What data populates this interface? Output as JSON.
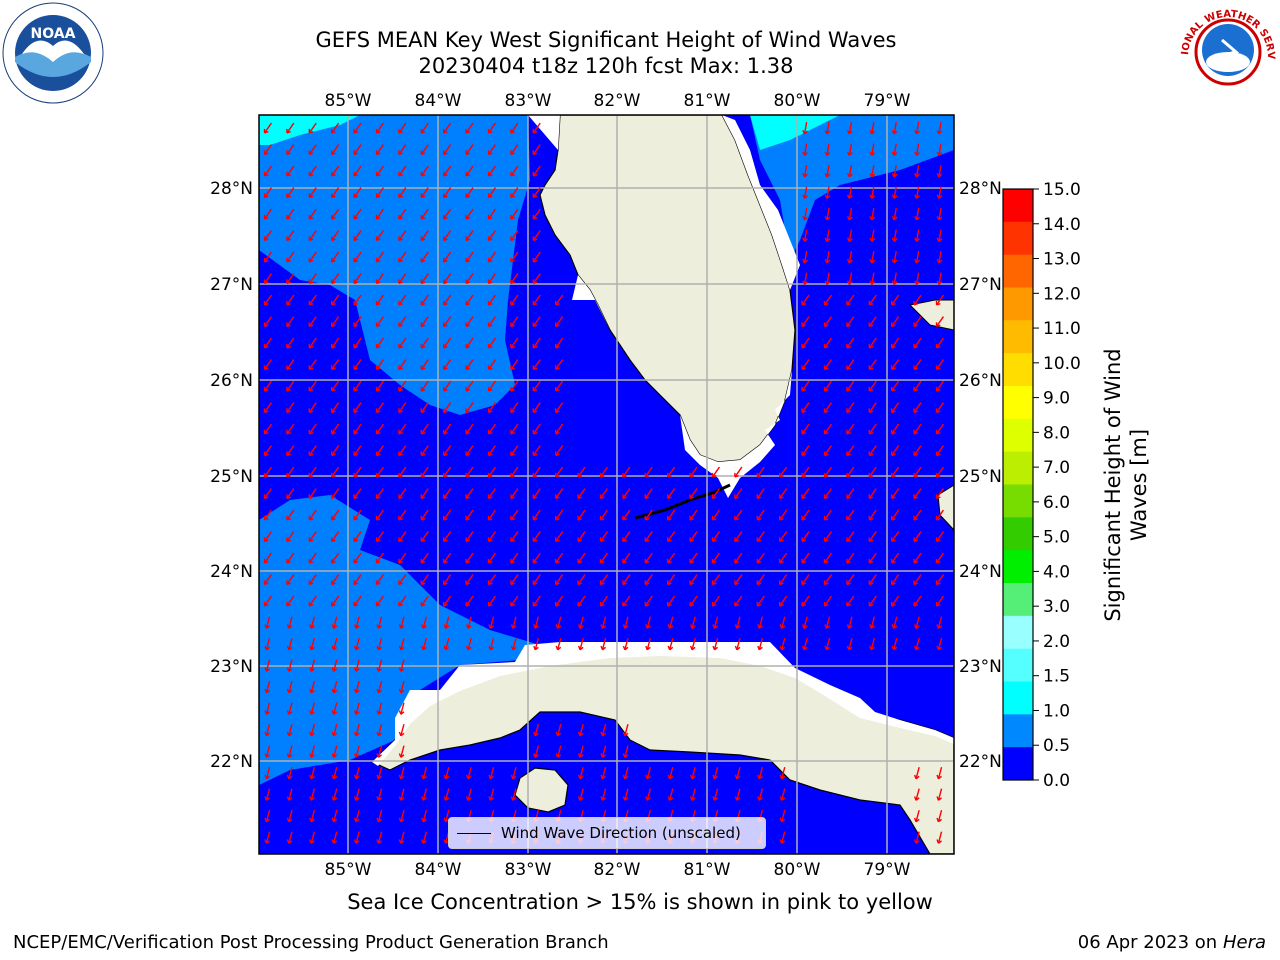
{
  "title": {
    "line1": "GEFS MEAN Key West Significant Height of Wind Waves",
    "line2": "20230404 t18z 120h fcst   Max: 1.38"
  },
  "map": {
    "lon_ticks": [
      "85°W",
      "84°W",
      "83°W",
      "82°W",
      "81°W",
      "80°W",
      "79°W"
    ],
    "lat_ticks": [
      "28°N",
      "27°N",
      "26°N",
      "25°N",
      "24°N",
      "23°N",
      "22°N"
    ],
    "gridlines": true,
    "legend_label": "Wind Wave Direction (unscaled)",
    "arrow_color": "#ff0000",
    "land_color": "#eeeedd",
    "sea_ice_note": "Sea Ice Concentration > 15% is shown in pink to yellow"
  },
  "colorbar": {
    "label": "Significant Height of Wind Waves [m]",
    "ticks": [
      "15.0",
      "14.0",
      "13.0",
      "12.0",
      "11.0",
      "10.0",
      "9.0",
      "8.0",
      "7.0",
      "6.0",
      "5.0",
      "4.0",
      "3.0",
      "2.0",
      "1.5",
      "1.0",
      "0.5",
      "0.0"
    ],
    "colors": [
      "#ff0000",
      "#ff3300",
      "#ff6600",
      "#ff9900",
      "#ffbb00",
      "#ffdd00",
      "#ffff00",
      "#ddff00",
      "#bbee00",
      "#77dd00",
      "#33cc00",
      "#00ee00",
      "#55ee77",
      "#99ffff",
      "#55ffff",
      "#00ffff",
      "#0088ff",
      "#0000ff"
    ]
  },
  "footer": {
    "left": "NCEP/EMC/Verification Post Processing Product Generation Branch",
    "right_prefix": "06 Apr 2023 on ",
    "right_host": "Hera"
  },
  "logos": {
    "noaa_text": "NOAA",
    "nws_text": "NATIONAL WEATHER SERVICE"
  }
}
